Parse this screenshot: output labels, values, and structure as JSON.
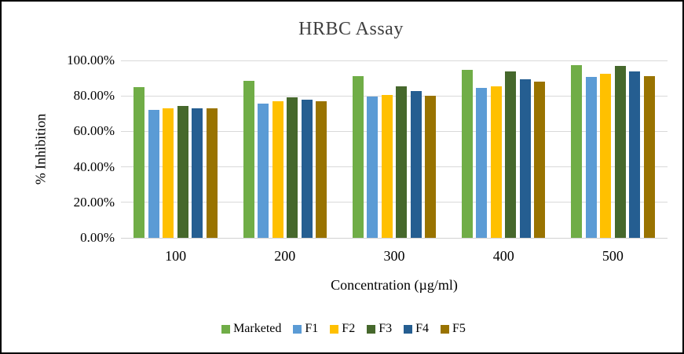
{
  "chart_data": {
    "type": "bar",
    "title": "HRBC Assay",
    "xlabel": "Concentration (µg/ml)",
    "ylabel": "% Inhibition",
    "categories": [
      "100",
      "200",
      "300",
      "400",
      "500"
    ],
    "series": [
      {
        "name": "Marketed",
        "color": "#70AD47",
        "values": [
          85.1,
          88.3,
          91.3,
          94.6,
          97.2
        ]
      },
      {
        "name": "F1",
        "color": "#5B9BD5",
        "values": [
          72.3,
          75.6,
          79.6,
          84.7,
          90.8
        ]
      },
      {
        "name": "F2",
        "color": "#FFC000",
        "values": [
          72.9,
          76.8,
          80.7,
          85.4,
          92.4
        ]
      },
      {
        "name": "F3",
        "color": "#46682C",
        "values": [
          74.2,
          79.3,
          85.6,
          93.7,
          96.8
        ]
      },
      {
        "name": "F4",
        "color": "#255E91",
        "values": [
          73.0,
          77.8,
          82.9,
          89.2,
          93.8
        ]
      },
      {
        "name": "F5",
        "color": "#997300",
        "values": [
          73.0,
          76.8,
          80.3,
          88.1,
          91.1
        ]
      }
    ],
    "y_ticks": [
      {
        "value": 0,
        "label": "0.00%"
      },
      {
        "value": 20,
        "label": "20.00%"
      },
      {
        "value": 40,
        "label": "40.00%"
      },
      {
        "value": 60,
        "label": "60.00%"
      },
      {
        "value": 80,
        "label": "80.00%"
      },
      {
        "value": 100,
        "label": "100.00%"
      }
    ],
    "ylim": [
      0,
      100
    ],
    "grid": true,
    "legend_position": "bottom",
    "gridline_color": "#D9D9D9",
    "axis_line_color": "#D2D2D2",
    "title_color": "#404040"
  }
}
